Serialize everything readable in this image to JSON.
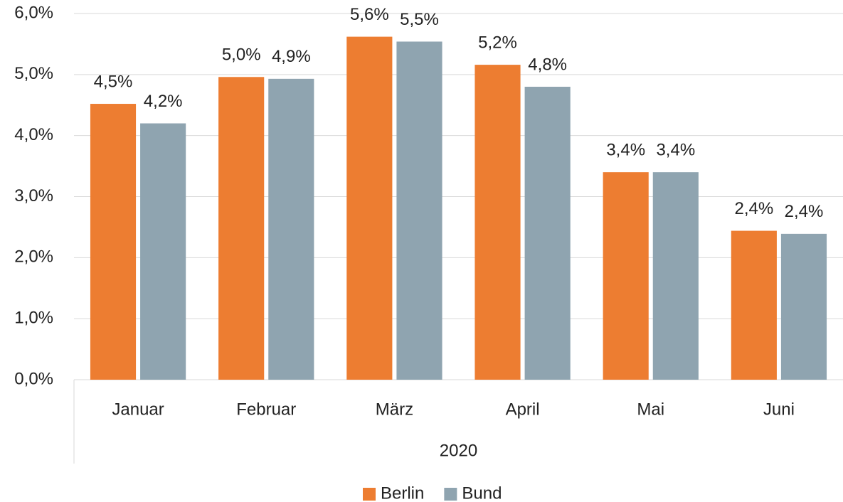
{
  "chart_data": {
    "type": "bar",
    "categories": [
      "Januar",
      "Februar",
      "März",
      "April",
      "Mai",
      "Juni"
    ],
    "x_group": "2020",
    "series": [
      {
        "name": "Berlin",
        "color": "#ed7d31",
        "values": [
          4.52,
          4.96,
          5.62,
          5.16,
          3.4,
          2.44
        ],
        "value_labels": [
          "4,5%",
          "5,0%",
          "5,6%",
          "5,2%",
          "3,4%",
          "2,4%"
        ]
      },
      {
        "name": "Bund",
        "color": "#8fa4b0",
        "values": [
          4.2,
          4.93,
          5.54,
          4.8,
          3.4,
          2.39
        ],
        "value_labels": [
          "4,2%",
          "4,9%",
          "5,5%",
          "4,8%",
          "3,4%",
          "2,4%"
        ]
      }
    ],
    "ylim": [
      0,
      6
    ],
    "yticks": [
      {
        "value": 0,
        "label": "0,0%"
      },
      {
        "value": 1,
        "label": "1,0%"
      },
      {
        "value": 2,
        "label": "2,0%"
      },
      {
        "value": 3,
        "label": "3,0%"
      },
      {
        "value": 4,
        "label": "4,0%"
      },
      {
        "value": 5,
        "label": "5,0%"
      },
      {
        "value": 6,
        "label": "6,0%"
      }
    ],
    "grid": true,
    "legend": "bottom"
  }
}
